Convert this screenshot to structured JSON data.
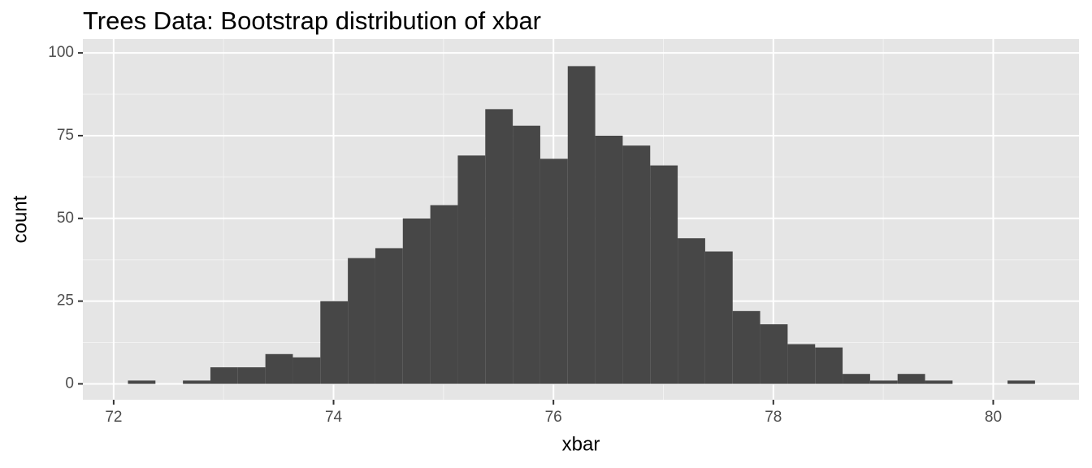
{
  "chart_data": {
    "type": "histogram",
    "title": "Trees Data: Bootstrap distribution of xbar",
    "x_label": "xbar",
    "y_label": "count",
    "bins": [
      72.13,
      72.38,
      72.63,
      72.88,
      73.13,
      73.38,
      73.63,
      73.88,
      74.13,
      74.38,
      74.63,
      74.88,
      75.13,
      75.38,
      75.63,
      75.88,
      76.13,
      76.38,
      76.63,
      76.88,
      77.13,
      77.38,
      77.63,
      77.88,
      78.13,
      78.38,
      78.63,
      78.88,
      79.13,
      79.38,
      79.63,
      79.88,
      80.13,
      80.38
    ],
    "values": [
      1,
      0,
      1,
      5,
      5,
      9,
      8,
      25,
      38,
      41,
      50,
      54,
      69,
      83,
      78,
      68,
      96,
      75,
      72,
      66,
      44,
      40,
      22,
      18,
      12,
      11,
      3,
      1,
      3,
      1,
      0,
      0,
      1
    ],
    "color": "#474747",
    "xlim": [
      71.72,
      80.78
    ],
    "xticks": [
      72,
      74,
      76,
      78,
      80
    ],
    "ylim": [
      -4.8,
      104.2
    ],
    "yticks": [
      0,
      25,
      50,
      75,
      100
    ],
    "grid": true
  }
}
